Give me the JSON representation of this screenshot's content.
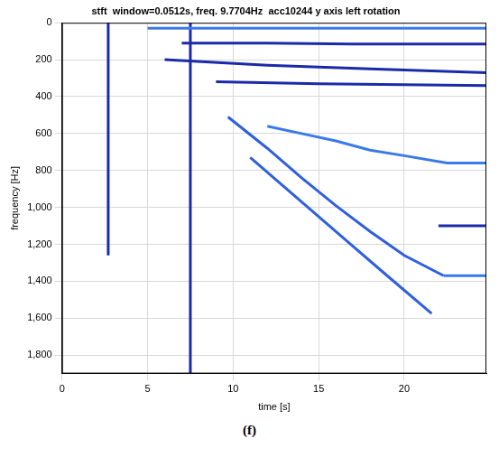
{
  "chart_data": {
    "type": "line",
    "title": "stft  window=0.0512s, freq. 9.7704Hz  acc10244 y axis left rotation",
    "x_label": "time [s]",
    "y_label": "frequency [Hz]",
    "caption": "(f)",
    "xlim": [
      0,
      24.8
    ],
    "xticks": [
      0,
      5,
      10,
      15,
      20
    ],
    "ylim": [
      0,
      1900
    ],
    "yticks": [
      0,
      200,
      400,
      600,
      800,
      1000,
      1200,
      1400,
      1600,
      1800
    ],
    "grid": true,
    "series": [
      {
        "color": "#2f5fe0",
        "line_style": "solid",
        "x": [
          9.7,
          12,
          14,
          16,
          18,
          20,
          22.3
        ],
        "values": [
          510,
          680,
          840,
          990,
          1130,
          1260,
          1370
        ]
      },
      {
        "color": "#2f5fe0",
        "line_style": "solid",
        "x": [
          11,
          13,
          15,
          17,
          19,
          21.6
        ],
        "values": [
          730,
          890,
          1050,
          1210,
          1370,
          1575
        ]
      },
      {
        "color": "#3a7ae8",
        "line_style": "solid",
        "x": [
          12,
          14,
          16,
          18,
          20,
          22.5,
          24.8
        ],
        "values": [
          560,
          600,
          640,
          690,
          720,
          760,
          760
        ]
      },
      {
        "color": "#3a7ae8",
        "line_style": "solid",
        "x": [
          22.3,
          24.8
        ],
        "values": [
          1370,
          1370
        ]
      },
      {
        "color": "#1a2aa8",
        "line_style": "solid",
        "x": [
          22,
          24.8
        ],
        "values": [
          1100,
          1100
        ]
      },
      {
        "color": "#3a7ae8",
        "line_style": "solid",
        "x": [
          5,
          10,
          15,
          20,
          24.8
        ],
        "values": [
          30,
          30,
          30,
          30,
          30
        ]
      },
      {
        "color": "#1a2aa8",
        "line_style": "solid",
        "x": [
          7,
          12,
          17,
          24.8
        ],
        "values": [
          110,
          110,
          115,
          115
        ]
      },
      {
        "color": "#1a2aa8",
        "line_style": "solid",
        "x": [
          6,
          12,
          18,
          24.8
        ],
        "values": [
          200,
          230,
          250,
          270
        ]
      },
      {
        "color": "#1a2aa8",
        "line_style": "solid",
        "x": [
          9,
          15,
          24.8
        ],
        "values": [
          320,
          330,
          340
        ]
      },
      {
        "color": "#1a2aa8",
        "line_style": "solid",
        "x": [
          2.7,
          2.7
        ],
        "values": [
          0,
          1260
        ]
      },
      {
        "color": "#1a2aa8",
        "line_style": "solid",
        "x": [
          7.5,
          7.5
        ],
        "values": [
          0,
          1900
        ]
      }
    ]
  }
}
